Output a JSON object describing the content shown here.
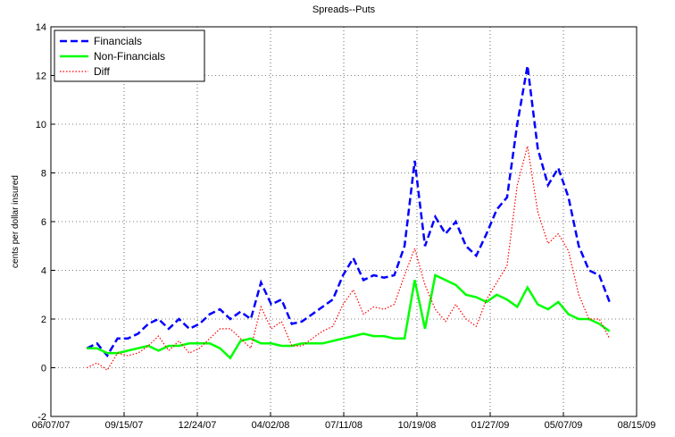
{
  "chart_data": {
    "type": "line",
    "title": "Spreads--Puts",
    "y_label": "cents per dollar insured",
    "x": [
      "07/26/07",
      "08/09/07",
      "08/23/07",
      "09/06/07",
      "09/20/07",
      "10/04/07",
      "10/18/07",
      "11/01/07",
      "11/15/07",
      "11/29/07",
      "12/13/07",
      "12/27/07",
      "01/10/08",
      "01/24/08",
      "02/07/08",
      "02/21/08",
      "03/06/08",
      "03/20/08",
      "04/03/08",
      "04/17/08",
      "05/01/08",
      "05/15/08",
      "05/29/08",
      "06/12/08",
      "06/26/08",
      "07/10/08",
      "07/24/08",
      "08/07/08",
      "08/21/08",
      "09/04/08",
      "09/18/08",
      "10/02/08",
      "10/16/08",
      "10/30/08",
      "11/13/08",
      "11/27/08",
      "12/11/08",
      "12/25/08",
      "01/08/09",
      "01/22/09",
      "02/05/09",
      "02/19/09",
      "03/05/09",
      "03/19/09",
      "04/02/09",
      "04/16/09",
      "04/30/09",
      "05/14/09",
      "05/28/09",
      "06/11/09",
      "06/25/09",
      "07/09/09"
    ],
    "series": [
      {
        "name": "Financials",
        "color": "#0000ff",
        "style": "dashed",
        "values": [
          0.8,
          1.0,
          0.5,
          1.2,
          1.2,
          1.4,
          1.8,
          2.0,
          1.6,
          2.0,
          1.6,
          1.8,
          2.2,
          2.4,
          2.0,
          2.3,
          2.0,
          3.5,
          2.6,
          2.8,
          1.8,
          1.9,
          2.2,
          2.5,
          2.8,
          3.8,
          4.5,
          3.6,
          3.8,
          3.7,
          3.8,
          5.0,
          8.5,
          5.0,
          6.2,
          5.5,
          6.0,
          5.0,
          4.6,
          5.5,
          6.5,
          7.0,
          10.0,
          12.4,
          9.0,
          7.5,
          8.2,
          7.0,
          5.0,
          4.0,
          3.8,
          2.7
        ]
      },
      {
        "name": "Non-Financials",
        "color": "#00ff00",
        "style": "solid",
        "values": [
          0.8,
          0.8,
          0.6,
          0.6,
          0.7,
          0.8,
          0.9,
          0.7,
          0.9,
          0.9,
          1.0,
          1.0,
          1.0,
          0.8,
          0.4,
          1.1,
          1.2,
          1.0,
          1.0,
          0.9,
          0.9,
          1.0,
          1.0,
          1.0,
          1.1,
          1.2,
          1.3,
          1.4,
          1.3,
          1.3,
          1.2,
          1.2,
          3.6,
          1.6,
          3.8,
          3.6,
          3.4,
          3.0,
          2.9,
          2.7,
          3.0,
          2.8,
          2.5,
          3.3,
          2.6,
          2.4,
          2.7,
          2.2,
          2.0,
          2.0,
          1.8,
          1.5
        ]
      },
      {
        "name": "Diff",
        "color": "#ff0000",
        "style": "dotted",
        "values": [
          0.0,
          0.2,
          -0.1,
          0.6,
          0.5,
          0.6,
          0.9,
          1.3,
          0.7,
          1.1,
          0.6,
          0.8,
          1.2,
          1.6,
          1.6,
          1.2,
          0.8,
          2.5,
          1.6,
          1.9,
          0.9,
          0.9,
          1.2,
          1.5,
          1.7,
          2.6,
          3.2,
          2.2,
          2.5,
          2.4,
          2.6,
          3.8,
          4.9,
          3.4,
          2.4,
          1.9,
          2.6,
          2.0,
          1.7,
          2.8,
          3.5,
          4.2,
          7.5,
          9.1,
          6.4,
          5.1,
          5.5,
          4.8,
          3.0,
          2.0,
          2.0,
          1.2
        ]
      }
    ],
    "xlim": [
      "06/07/07",
      "08/15/09"
    ],
    "xticks": [
      "06/07/07",
      "09/15/07",
      "12/24/07",
      "04/02/08",
      "07/11/08",
      "10/19/08",
      "01/27/09",
      "05/07/09",
      "08/15/09"
    ],
    "ylim": [
      -2,
      14
    ],
    "yticks": [
      -2,
      0,
      2,
      4,
      6,
      8,
      10,
      12,
      14
    ],
    "grid": true,
    "legend": "upper left"
  }
}
